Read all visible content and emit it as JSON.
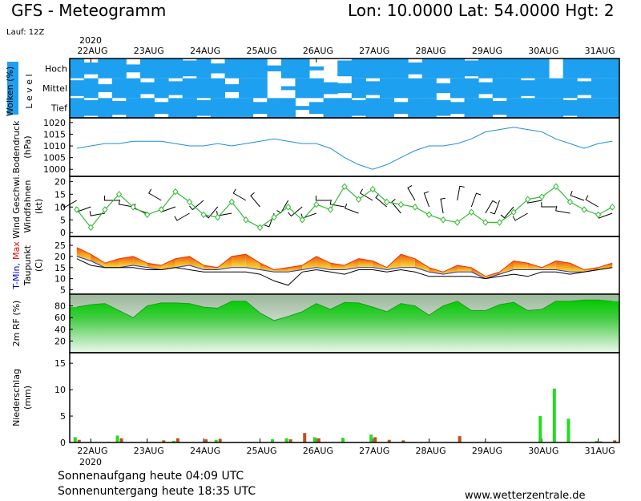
{
  "header": {
    "title": "GFS - Meteogramm",
    "location": "Lon: 10.0000 Lat: 54.0000 Hgt: 2",
    "run": "Lauf: 12Z",
    "year": "2020",
    "dates": [
      "22AUG",
      "23AUG",
      "24AUG",
      "25AUG",
      "26AUG",
      "27AUG",
      "28AUG",
      "29AUG",
      "30AUG",
      "31AUG"
    ]
  },
  "chart_data": [
    {
      "type": "cloud",
      "ylabel": [
        "Wolken (%)",
        "L e v e l"
      ],
      "color": "#1ea0f0",
      "levels": [
        "Hoch",
        "Mittel",
        "Tief"
      ],
      "series": [
        {
          "values": [
            100,
            60,
            100,
            100,
            40,
            100,
            100,
            100,
            80,
            100,
            50,
            100,
            100,
            100,
            30,
            100,
            100,
            20,
            0,
            80,
            100,
            100,
            100,
            100,
            60,
            100,
            100,
            100,
            80,
            100,
            100,
            100,
            100,
            100,
            0,
            100,
            100,
            100,
            100
          ]
        },
        {
          "values": [
            80,
            100,
            40,
            100,
            100,
            60,
            100,
            70,
            100,
            100,
            100,
            40,
            100,
            100,
            0,
            20,
            100,
            100,
            60,
            50,
            100,
            70,
            100,
            100,
            100,
            100,
            50,
            100,
            100,
            60,
            100,
            100,
            80,
            100,
            100,
            100,
            70,
            100,
            100
          ]
        },
        {
          "values": [
            100,
            80,
            100,
            70,
            100,
            100,
            60,
            100,
            100,
            80,
            100,
            100,
            100,
            60,
            100,
            100,
            20,
            60,
            100,
            100,
            80,
            100,
            100,
            60,
            100,
            100,
            80,
            60,
            100,
            100,
            70,
            100,
            100,
            100,
            100,
            80,
            100,
            100,
            100
          ]
        }
      ]
    },
    {
      "type": "line",
      "ylabel": [
        "Bodendruck",
        "(hPa)"
      ],
      "ylabel_colors": [
        "#000000",
        "#000000"
      ],
      "color": "#1e8fd6",
      "ylim": [
        997,
        1022
      ],
      "yticks": [
        1000,
        1005,
        1010,
        1015,
        1020
      ],
      "values": [
        1009,
        1010,
        1011,
        1011,
        1012,
        1012,
        1012,
        1011,
        1010,
        1010,
        1011,
        1010,
        1011,
        1012,
        1013,
        1012,
        1011,
        1011,
        1009,
        1005,
        1002,
        1000,
        1002,
        1005,
        1008,
        1010,
        1010,
        1011,
        1013,
        1016,
        1017,
        1018,
        1017,
        1016,
        1013,
        1011,
        1009,
        1011,
        1012
      ]
    },
    {
      "type": "wind",
      "ylabel": [
        "Wind Geschwi.",
        "Windfahnen",
        "(kt)"
      ],
      "ylabel_colors": [
        "#00aa00",
        "#000000",
        "#000000"
      ],
      "color": "#33bb33",
      "ylim": [
        -1.5,
        22
      ],
      "yticks": [
        0,
        5,
        10,
        15,
        20
      ],
      "values": [
        9,
        2,
        9,
        15,
        10,
        7,
        9,
        16,
        12,
        7,
        6,
        12,
        5,
        2,
        6,
        10,
        5,
        11,
        9,
        18,
        13,
        17,
        12,
        11,
        10,
        7,
        5,
        4,
        8,
        4,
        4,
        8,
        13,
        14,
        18,
        12,
        9,
        7,
        10
      ],
      "direction": [
        240,
        250,
        260,
        270,
        280,
        290,
        300,
        250,
        240,
        230,
        220,
        260,
        300,
        320,
        200,
        210,
        230,
        250,
        270,
        280,
        290,
        300,
        310,
        320,
        330,
        340,
        350,
        10,
        20,
        30,
        200,
        220,
        240,
        260,
        270,
        280,
        290,
        300,
        250
      ]
    },
    {
      "type": "temperature",
      "ylabel": [
        [
          "T-Min,",
          "Max"
        ],
        "Taupunkt",
        "(C)"
      ],
      "ylabel_colors": [
        [
          "#0000cc",
          "#ee0000"
        ],
        "#000000",
        "#000000"
      ],
      "ylim": [
        3,
        29
      ],
      "yticks": [
        5,
        10,
        15,
        20,
        25
      ],
      "series": [
        {
          "color": "#ee3300",
          "values": [
            24,
            21,
            17,
            19,
            20,
            17,
            16,
            19,
            20,
            16,
            15,
            20,
            21,
            17,
            14,
            15,
            16,
            20,
            17,
            16,
            19,
            18,
            15,
            21,
            19,
            15,
            13,
            16,
            15,
            11,
            13,
            18,
            17,
            15,
            18,
            17,
            14,
            15,
            17
          ]
        },
        {
          "color": "#2233cc",
          "values": [
            20,
            18,
            15,
            15,
            16,
            15,
            14,
            15,
            16,
            14,
            14,
            15,
            15,
            14,
            13,
            13,
            14,
            15,
            14,
            14,
            15,
            15,
            14,
            15,
            15,
            13,
            12,
            13,
            13,
            10,
            12,
            14,
            14,
            14,
            14,
            13,
            13,
            14,
            15
          ]
        },
        {
          "color": "#000000",
          "values": [
            19,
            16,
            15,
            15,
            15,
            14,
            14,
            15,
            14,
            13,
            13,
            13,
            13,
            12,
            9,
            7,
            13,
            14,
            13,
            12,
            14,
            14,
            13,
            14,
            13,
            11,
            11,
            11,
            11,
            10,
            11,
            12,
            11,
            13,
            13,
            12,
            13,
            14,
            15
          ]
        }
      ]
    },
    {
      "type": "area",
      "ylabel": [
        "2m RF (%)"
      ],
      "ylabel_colors": [
        "#00aa00"
      ],
      "color": "#11cc11",
      "ylim": [
        0,
        100
      ],
      "yticks": [
        20,
        40,
        60,
        80
      ],
      "values": [
        78,
        82,
        84,
        72,
        60,
        80,
        85,
        85,
        84,
        78,
        76,
        88,
        88,
        68,
        55,
        62,
        70,
        84,
        74,
        86,
        85,
        78,
        70,
        84,
        80,
        64,
        80,
        88,
        72,
        72,
        82,
        86,
        72,
        74,
        88,
        88,
        90,
        90,
        88
      ]
    },
    {
      "type": "bar",
      "ylabel": [
        "Niederschlag",
        "(mm)"
      ],
      "ylabel_colors": [
        "#000000",
        "#000000"
      ],
      "ylim": [
        0,
        17
      ],
      "yticks": [
        0,
        5,
        10,
        15
      ],
      "series": [
        {
          "color": "#22dd22",
          "values": [
            1.0,
            0,
            0,
            1.3,
            0,
            0,
            0,
            0.3,
            0,
            0,
            0.5,
            0,
            0,
            0,
            0.6,
            0.8,
            0,
            1.0,
            0,
            0.9,
            0,
            1.5,
            0,
            0,
            0,
            0,
            0,
            0,
            0,
            0,
            0,
            0,
            0,
            5.0,
            10.2,
            4.5,
            0,
            0.3,
            0
          ]
        },
        {
          "color": "#c0501e",
          "values": [
            0.5,
            0,
            0,
            0.8,
            0,
            0,
            0.4,
            0.8,
            0,
            0.6,
            0.7,
            0,
            0,
            0,
            0,
            0.6,
            1.8,
            0.8,
            0,
            0,
            0,
            1.0,
            0.5,
            0.4,
            0,
            0,
            0,
            1.2,
            0,
            0,
            0,
            0,
            0,
            0,
            0,
            0,
            0,
            0.2,
            0.4
          ]
        }
      ]
    }
  ],
  "footer": {
    "sunrise": "Sonnenaufgang heute 04:09 UTC",
    "sunset": "Sonnenuntergang heute 18:35 UTC",
    "website": "www.wetterzentrale.de"
  }
}
